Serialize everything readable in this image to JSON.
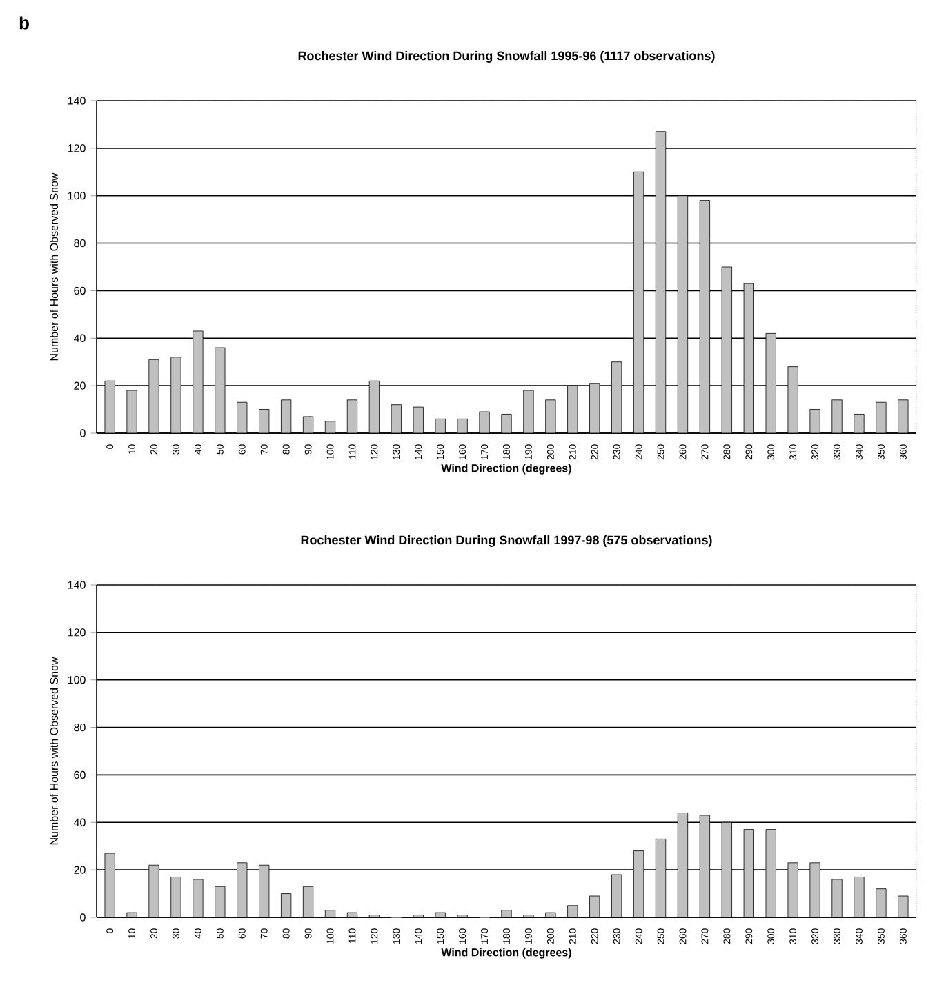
{
  "chart_data": [
    {
      "type": "bar",
      "title": "Rochester Wind Direction During Snowfall 1995-96 (1117 observations)",
      "xlabel": "Wind Direction (degrees)",
      "ylabel": "Number of Hours with Observed Snow",
      "annotations": [
        "b"
      ],
      "categories": [
        "0",
        "10",
        "20",
        "30",
        "40",
        "50",
        "60",
        "70",
        "80",
        "90",
        "100",
        "110",
        "120",
        "130",
        "140",
        "150",
        "160",
        "170",
        "180",
        "190",
        "200",
        "210",
        "220",
        "230",
        "240",
        "250",
        "260",
        "270",
        "280",
        "290",
        "300",
        "310",
        "320",
        "330",
        "340",
        "350",
        "360"
      ],
      "values": [
        22,
        18,
        31,
        32,
        43,
        36,
        13,
        10,
        14,
        7,
        5,
        14,
        22,
        12,
        11,
        6,
        6,
        9,
        8,
        18,
        14,
        20,
        21,
        30,
        110,
        127,
        100,
        98,
        70,
        63,
        42,
        28,
        10,
        14,
        8,
        13,
        14
      ],
      "color": "#c0c0c0",
      "ylim": [
        0,
        140
      ],
      "yticks": [
        0,
        20,
        40,
        60,
        80,
        100,
        120,
        140
      ],
      "grid": "y"
    },
    {
      "type": "bar",
      "title": "Rochester Wind Direction During Snowfall 1997-98 (575 observations)",
      "xlabel": "Wind Direction (degrees)",
      "ylabel": "Number of Hours with Observed Snow",
      "categories": [
        "0",
        "10",
        "20",
        "30",
        "40",
        "50",
        "60",
        "70",
        "80",
        "90",
        "100",
        "110",
        "120",
        "130",
        "140",
        "150",
        "160",
        "170",
        "180",
        "190",
        "200",
        "210",
        "220",
        "230",
        "240",
        "250",
        "260",
        "270",
        "280",
        "290",
        "300",
        "310",
        "320",
        "330",
        "340",
        "350",
        "360"
      ],
      "values": [
        27,
        2,
        22,
        17,
        16,
        13,
        23,
        22,
        10,
        13,
        3,
        2,
        1,
        0,
        1,
        2,
        1,
        0,
        3,
        1,
        2,
        5,
        9,
        18,
        28,
        33,
        44,
        43,
        40,
        37,
        37,
        23,
        23,
        16,
        17,
        12,
        9
      ],
      "color": "#c0c0c0",
      "ylim": [
        0,
        140
      ],
      "yticks": [
        0,
        20,
        40,
        60,
        80,
        100,
        120,
        140
      ],
      "grid": "y"
    }
  ]
}
